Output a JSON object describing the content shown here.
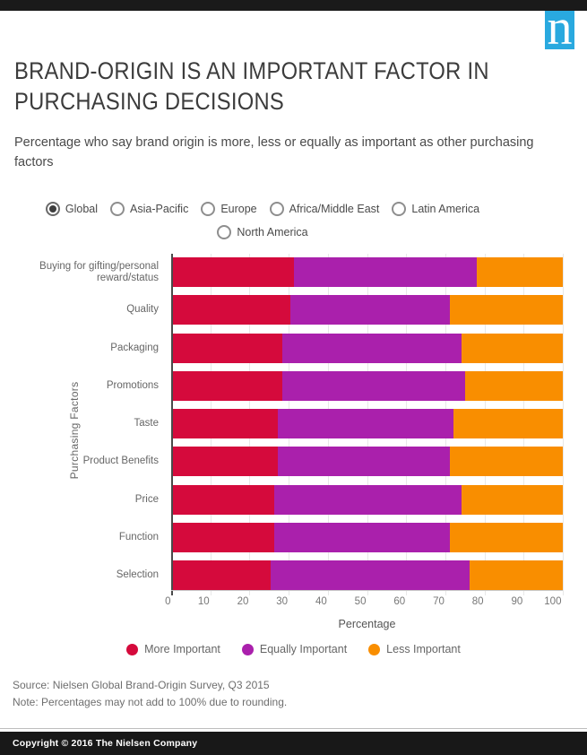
{
  "header": {
    "logo_letter": "n",
    "title": "BRAND-ORIGIN IS AN IMPORTANT FACTOR IN PURCHASING DECISIONS",
    "subtitle": "Percentage who say brand origin is more, less or equally as important as other purchasing factors"
  },
  "region_filter": {
    "rows": [
      [
        {
          "label": "Global",
          "selected": true
        },
        {
          "label": "Asia-Pacific",
          "selected": false
        },
        {
          "label": "Europe",
          "selected": false
        },
        {
          "label": "Africa/Middle East",
          "selected": false
        },
        {
          "label": "Latin America",
          "selected": false
        }
      ],
      [
        {
          "label": "North America",
          "selected": false
        }
      ]
    ]
  },
  "chart_data": {
    "type": "bar",
    "orientation": "horizontal",
    "stacked": true,
    "xlabel": "Percentage",
    "ylabel": "Purchasing Factors",
    "xlim": [
      0,
      100
    ],
    "xticks": [
      0,
      10,
      20,
      30,
      40,
      50,
      60,
      70,
      80,
      90,
      100
    ],
    "grid": true,
    "legend_position": "bottom",
    "categories": [
      "Buying for gifting/personal reward/status",
      "Quality",
      "Packaging",
      "Promotions",
      "Taste",
      "Product Benefits",
      "Price",
      "Function",
      "Selection"
    ],
    "series": [
      {
        "name": "More Important",
        "color": "#D50A3C",
        "values": [
          31,
          30,
          28,
          28,
          27,
          27,
          26,
          26,
          25
        ]
      },
      {
        "name": "Equally Important",
        "color": "#AA20AC",
        "values": [
          47,
          41,
          46,
          47,
          45,
          44,
          48,
          45,
          51
        ]
      },
      {
        "name": "Less Important",
        "color": "#F98E00",
        "values": [
          22,
          29,
          26,
          25,
          28,
          29,
          26,
          29,
          24
        ]
      }
    ]
  },
  "footer": {
    "source": "Source: Nielsen Global Brand-Origin Survey, Q3 2015",
    "note": "Note: Percentages may not add to 100% due to rounding.",
    "copyright": "Copyright © 2016 The Nielsen Company"
  },
  "colors": {
    "brand_blue": "#29A9DF",
    "bar_red": "#D50A3C",
    "bar_purple": "#AA20AC",
    "bar_orange": "#F98E00",
    "top_bar": "#1A1A1A"
  }
}
